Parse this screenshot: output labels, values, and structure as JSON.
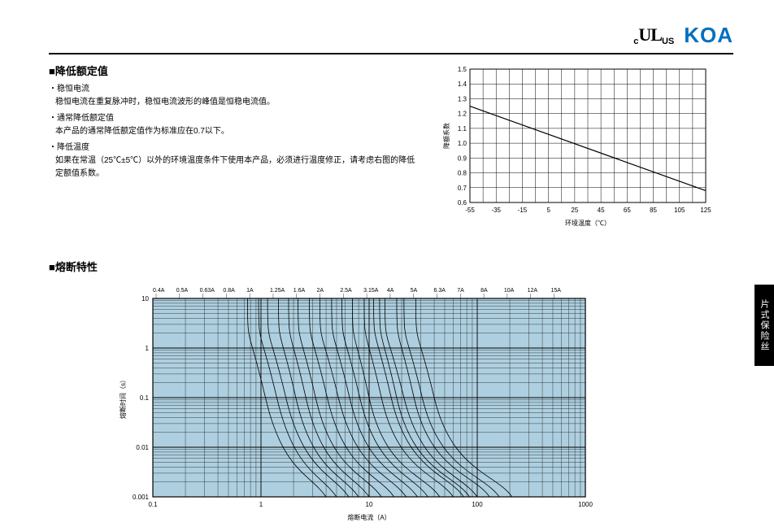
{
  "header": {
    "cert_c": "c",
    "cert_ul": "UL",
    "cert_us": "US",
    "brand": "KOA"
  },
  "side_tab": "片式保险丝",
  "section1": {
    "heading": "■降低额定值",
    "b1_title": "稳恒电流",
    "b1_body": "稳恒电流在重复脉冲时，稳恒电流波形的峰值是恒稳电流值。",
    "b2_title": "通常降低额定值",
    "b2_body": "本产品的通常降低额定值作为标准应在0.7以下。",
    "b3_title": "降低温度",
    "b3_body": "如果在常温（25℃±5℃）以外的环境温度条件下使用本产品，必须进行温度修正，请考虑右图的降低定额值系数。"
  },
  "derating_chart": {
    "type": "line",
    "y_label": "降额系数",
    "x_label": "环境温度（℃）",
    "ylim": [
      0.6,
      1.5
    ],
    "yticks": [
      0.6,
      0.7,
      0.8,
      0.9,
      1.0,
      1.1,
      1.2,
      1.3,
      1.4,
      1.5
    ],
    "xlim": [
      -55,
      125
    ],
    "xticks": [
      -55,
      -35,
      -15,
      5,
      25,
      45,
      65,
      85,
      105,
      125
    ],
    "line": {
      "x1": -55,
      "y1": 1.25,
      "x2": 125,
      "y2": 0.68,
      "color": "#000000",
      "width": 1.2
    },
    "grid_color": "#000000",
    "grid_minor_color": "#000000",
    "bg": "#ffffff",
    "label_fontsize": 8,
    "tick_fontsize": 8
  },
  "section2": {
    "heading": "■熔断特性"
  },
  "fusing_chart": {
    "type": "line-loglog",
    "x_label": "熔断电流（A）",
    "y_label": "熔断时间（s）",
    "xlim": [
      0.1,
      1000
    ],
    "ylim": [
      0.001,
      10
    ],
    "xticks": [
      0.1,
      1,
      10,
      100,
      1000
    ],
    "yticks": [
      0.001,
      0.01,
      0.1,
      1,
      10
    ],
    "bg_band": "#aecfdf",
    "grid_color": "#000000",
    "label_fontsize": 8,
    "tick_fontsize": 8,
    "series_labels": [
      "0.4A",
      "0.5A",
      "0.63A",
      "0.8A",
      "1A",
      "1.25A",
      "1.6A",
      "2A",
      "2.5A",
      "3.15A",
      "4A",
      "5A",
      "6.3A",
      "7A",
      "8A",
      "10A",
      "12A",
      "15A"
    ],
    "label_fontsize_series": 7,
    "series": [
      {
        "asym_x": 0.75,
        "knee_x": 1.1,
        "tail_x": 4
      },
      {
        "asym_x": 0.95,
        "knee_x": 1.4,
        "tail_x": 5
      },
      {
        "asym_x": 1.15,
        "knee_x": 1.7,
        "tail_x": 6.5
      },
      {
        "asym_x": 1.45,
        "knee_x": 2.1,
        "tail_x": 8
      },
      {
        "asym_x": 1.8,
        "knee_x": 2.6,
        "tail_x": 10
      },
      {
        "asym_x": 2.2,
        "knee_x": 3.2,
        "tail_x": 13
      },
      {
        "asym_x": 2.8,
        "knee_x": 4.1,
        "tail_x": 17
      },
      {
        "asym_x": 3.5,
        "knee_x": 5.2,
        "tail_x": 22
      },
      {
        "asym_x": 4.5,
        "knee_x": 6.6,
        "tail_x": 28
      },
      {
        "asym_x": 5.6,
        "knee_x": 8.2,
        "tail_x": 35
      },
      {
        "asym_x": 7.0,
        "knee_x": 10,
        "tail_x": 45
      },
      {
        "asym_x": 9.0,
        "knee_x": 13,
        "tail_x": 60
      },
      {
        "asym_x": 11,
        "knee_x": 16,
        "tail_x": 75
      },
      {
        "asym_x": 12.5,
        "knee_x": 18,
        "tail_x": 85
      },
      {
        "asym_x": 14,
        "knee_x": 21,
        "tail_x": 100
      },
      {
        "asym_x": 18,
        "knee_x": 26,
        "tail_x": 130
      },
      {
        "asym_x": 21,
        "knee_x": 31,
        "tail_x": 160
      },
      {
        "asym_x": 27,
        "knee_x": 40,
        "tail_x": 210
      }
    ],
    "series_color": "#000000",
    "series_width": 0.8
  }
}
